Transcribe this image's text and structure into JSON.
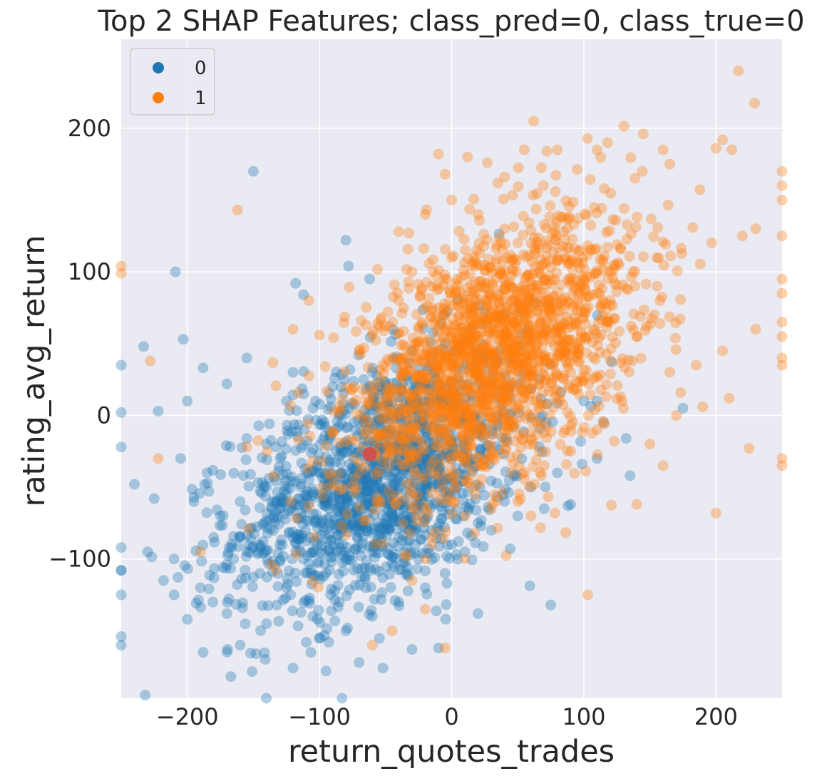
{
  "chart_data": {
    "type": "scatter",
    "title": "Top 2 SHAP Features; class_pred=0, class_true=0",
    "xlabel": "return_quotes_trades",
    "ylabel": "rating_avg_return",
    "xlim": [
      -250,
      250
    ],
    "ylim": [
      -197,
      262
    ],
    "xticks": [
      -200,
      -100,
      0,
      100,
      200
    ],
    "yticks": [
      -100,
      0,
      100,
      200
    ],
    "xtick_labels": [
      "−200",
      "−100",
      "0",
      "100",
      "200"
    ],
    "ytick_labels": [
      "−100",
      "0",
      "100",
      "200"
    ],
    "grid": true,
    "legend_position": "top-left",
    "series": [
      {
        "name": "0",
        "color": "#1f77b4",
        "alpha": 0.35,
        "center": [
          -55,
          -45
        ],
        "spread": [
          55,
          45
        ],
        "correlation": 0.45,
        "count": 1500,
        "points": [
          [
            -150,
            170
          ],
          [
            -209,
            100
          ],
          [
            -80,
            122
          ],
          [
            -78,
            104
          ],
          [
            -62,
            95
          ],
          [
            -118,
            92
          ],
          [
            -112,
            84
          ],
          [
            -233,
            48
          ],
          [
            -203,
            53
          ],
          [
            -188,
            33
          ],
          [
            -250,
            35
          ],
          [
            -250,
            2
          ],
          [
            -200,
            10
          ],
          [
            -222,
            3
          ],
          [
            -240,
            -48
          ],
          [
            -225,
            -58
          ],
          [
            -250,
            -22
          ],
          [
            -250,
            -92
          ],
          [
            -250,
            -108
          ],
          [
            -250,
            -125
          ],
          [
            -250,
            -154
          ],
          [
            -250,
            -160
          ],
          [
            -218,
            -115
          ],
          [
            -210,
            -125
          ],
          [
            -200,
            -142
          ],
          [
            -188,
            -165
          ],
          [
            -170,
            -138
          ],
          [
            -160,
            -160
          ],
          [
            -148,
            -166
          ],
          [
            -140,
            -145
          ],
          [
            -120,
            -176
          ],
          [
            -110,
            -158
          ],
          [
            -95,
            -178
          ],
          [
            -70,
            -172
          ],
          [
            -52,
            -176
          ],
          [
            -30,
            -163
          ],
          [
            -10,
            -162
          ],
          [
            -80,
            -150
          ],
          [
            -60,
            -140
          ],
          [
            -40,
            -130
          ],
          [
            -20,
            -120
          ],
          [
            -5,
            -110
          ],
          [
            10,
            -95
          ],
          [
            30,
            -80
          ],
          [
            50,
            -70
          ],
          [
            70,
            -65
          ],
          [
            90,
            -62
          ],
          [
            132,
            -16
          ],
          [
            175,
            5
          ],
          [
            -20,
            -30
          ],
          [
            -45,
            -10
          ],
          [
            -35,
            5
          ],
          [
            -10,
            15
          ],
          [
            -90,
            20
          ],
          [
            -120,
            30
          ],
          [
            -155,
            40
          ],
          [
            -170,
            22
          ],
          [
            -140,
            -20
          ],
          [
            -100,
            -40
          ],
          [
            -80,
            -75
          ],
          [
            -60,
            -95
          ],
          [
            -95,
            -110
          ],
          [
            -130,
            -90
          ],
          [
            -180,
            -85
          ],
          [
            -190,
            -120
          ],
          [
            -210,
            -100
          ],
          [
            -230,
            -95
          ],
          [
            -160,
            -60
          ],
          [
            -140,
            -50
          ],
          [
            -110,
            -65
          ],
          [
            -70,
            -25
          ],
          [
            -50,
            -55
          ],
          [
            -30,
            -65
          ],
          [
            -15,
            -80
          ],
          [
            0,
            -90
          ],
          [
            20,
            -75
          ],
          [
            40,
            -60
          ],
          [
            60,
            -50
          ],
          [
            80,
            -40
          ],
          [
            110,
            -30
          ],
          [
            135,
            -42
          ],
          [
            75,
            -132
          ],
          [
            88,
            -63
          ],
          [
            -40,
            -85
          ],
          [
            -25,
            -100
          ],
          [
            -65,
            -120
          ],
          [
            -85,
            -130
          ],
          [
            -105,
            -140
          ],
          [
            -125,
            -120
          ],
          [
            -145,
            -110
          ],
          [
            -165,
            -100
          ],
          [
            -175,
            -70
          ],
          [
            -195,
            -60
          ],
          [
            -205,
            -30
          ],
          [
            -185,
            -40
          ],
          [
            -125,
            10
          ],
          [
            -105,
            5
          ],
          [
            -85,
            0
          ],
          [
            -60,
            30
          ],
          [
            -30,
            45
          ],
          [
            -5,
            50
          ],
          [
            15,
            60
          ],
          [
            40,
            70
          ],
          [
            100,
            10
          ],
          [
            115,
            -5
          ]
        ]
      },
      {
        "name": "1",
        "color": "#ff7f0e",
        "alpha": 0.35,
        "center": [
          30,
          40
        ],
        "spread": [
          55,
          48
        ],
        "correlation": 0.5,
        "count": 2000,
        "points": [
          [
            217,
            240
          ],
          [
            62,
            205
          ],
          [
            -162,
            143
          ],
          [
            -250,
            104
          ],
          [
            -250,
            99
          ],
          [
            -228,
            38
          ],
          [
            -222,
            -30
          ],
          [
            -155,
            -22
          ],
          [
            -190,
            -95
          ],
          [
            -108,
            80
          ],
          [
            -100,
            56
          ],
          [
            -120,
            60
          ],
          [
            -65,
            63
          ],
          [
            -60,
            56
          ],
          [
            -47,
            62
          ],
          [
            -70,
            -40
          ],
          [
            -60,
            -160
          ],
          [
            -20,
            -135
          ],
          [
            -45,
            -150
          ],
          [
            -5,
            -162
          ],
          [
            -10,
            182
          ],
          [
            -5,
            168
          ],
          [
            12,
            180
          ],
          [
            27,
            176
          ],
          [
            40,
            166
          ],
          [
            55,
            185
          ],
          [
            72,
            184
          ],
          [
            80,
            185
          ],
          [
            110,
            185
          ],
          [
            118,
            190
          ],
          [
            145,
            196
          ],
          [
            160,
            185
          ],
          [
            165,
            175
          ],
          [
            200,
            186
          ],
          [
            205,
            192
          ],
          [
            212,
            185
          ],
          [
            220,
            125
          ],
          [
            230,
            130
          ],
          [
            250,
            160
          ],
          [
            250,
            150
          ],
          [
            250,
            170
          ],
          [
            250,
            125
          ],
          [
            250,
            95
          ],
          [
            250,
            85
          ],
          [
            250,
            65
          ],
          [
            250,
            55
          ],
          [
            250,
            40
          ],
          [
            250,
            35
          ],
          [
            250,
            -35
          ],
          [
            250,
            -30
          ],
          [
            200,
            -68
          ],
          [
            225,
            -23
          ],
          [
            103,
            -125
          ],
          [
            123,
            -18
          ],
          [
            140,
            -62
          ],
          [
            160,
            -35
          ],
          [
            60,
            -70
          ],
          [
            30,
            -65
          ],
          [
            10,
            -70
          ],
          [
            -15,
            -85
          ],
          [
            -20,
            -100
          ],
          [
            -30,
            -115
          ],
          [
            210,
            12
          ],
          [
            190,
            6
          ],
          [
            170,
            0
          ],
          [
            150,
            -20
          ],
          [
            230,
            60
          ],
          [
            205,
            45
          ],
          [
            185,
            35
          ],
          [
            165,
            30
          ],
          [
            140,
            55
          ],
          [
            120,
            80
          ],
          [
            100,
            95
          ],
          [
            80,
            110
          ],
          [
            60,
            120
          ],
          [
            40,
            130
          ],
          [
            20,
            140
          ],
          [
            0,
            150
          ],
          [
            -20,
            140
          ],
          [
            -40,
            128
          ],
          [
            -30,
            100
          ],
          [
            -15,
            90
          ],
          [
            -40,
            80
          ],
          [
            -25,
            60
          ],
          [
            -10,
            45
          ],
          [
            -20,
            25
          ],
          [
            -30,
            5
          ],
          [
            -5,
            -10
          ],
          [
            10,
            -20
          ],
          [
            25,
            -30
          ],
          [
            45,
            -40
          ],
          [
            70,
            -35
          ],
          [
            90,
            -25
          ],
          [
            110,
            -10
          ],
          [
            130,
            5
          ]
        ]
      },
      {
        "name": "",
        "color": "#d0504f",
        "alpha": 1,
        "points": [
          [
            -62,
            -27
          ]
        ]
      }
    ]
  }
}
